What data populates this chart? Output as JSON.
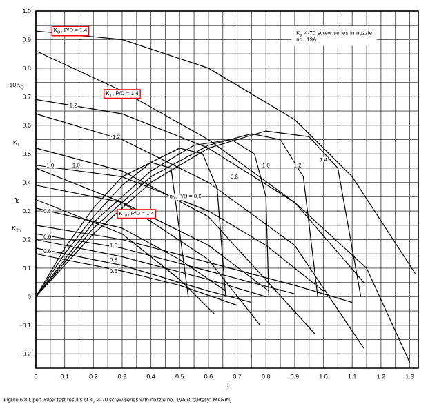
{
  "chart_data": {
    "type": "line",
    "xlabel": "J",
    "ylabel": "10K$_{Q}$",
    "xlim": [
      0,
      1.33
    ],
    "ylim": [
      -0.25,
      1.0
    ],
    "xticks": [
      0,
      0.1,
      0.2,
      0.3,
      0.4,
      0.5,
      0.6,
      0.7,
      0.8,
      0.9,
      {
        "value": 1.0,
        "label": "1.0"
      },
      1.1,
      1.2,
      1.3
    ],
    "yticks": [
      {
        "value": -0.2,
        "label": "−0.2"
      },
      {
        "value": -0.1,
        "label": "−0.1"
      },
      0,
      0.1,
      0.2,
      0.3,
      0.4,
      0.5,
      0.6,
      0.7,
      0.8,
      0.9,
      {
        "value": 1.0,
        "label": "1.0"
      }
    ],
    "grid": true,
    "series": [
      {
        "color": "#000000",
        "x": [
          0,
          0.3,
          0.6,
          0.9,
          1.1,
          1.32
        ],
        "values": [
          0.93,
          0.9,
          0.8,
          0.62,
          0.42,
          0.08
        ]
      },
      {
        "color": "#000000",
        "x": [
          0,
          0.3,
          0.6,
          0.9,
          1.14
        ],
        "values": [
          0.69,
          0.64,
          0.52,
          0.33,
          0.05
        ]
      },
      {
        "color": "#000000",
        "x": [
          0,
          0.3,
          0.6,
          0.8,
          1.0
        ],
        "values": [
          0.46,
          0.42,
          0.3,
          0.18,
          0.02
        ]
      },
      {
        "color": "#000000",
        "x": [
          0,
          0.3,
          0.6,
          0.81
        ],
        "values": [
          0.39,
          0.33,
          0.18,
          0.02
        ]
      },
      {
        "color": "#000000",
        "x": [
          0,
          0.3,
          0.5,
          0.66
        ],
        "values": [
          0.31,
          0.24,
          0.13,
          0.02
        ]
      },
      {
        "color": "#000000",
        "x": [
          0,
          0.3,
          0.6,
          0.9,
          1.15,
          1.3
        ],
        "values": [
          0.86,
          0.72,
          0.55,
          0.33,
          0.1,
          -0.23
        ]
      },
      {
        "color": "#000000",
        "x": [
          0,
          0.3,
          0.6,
          0.9,
          1.14
        ],
        "values": [
          0.64,
          0.55,
          0.4,
          0.18,
          -0.18
        ]
      },
      {
        "color": "#000000",
        "x": [
          0,
          0.3,
          0.6,
          0.97
        ],
        "values": [
          0.52,
          0.44,
          0.28,
          -0.13
        ]
      },
      {
        "color": "#000000",
        "x": [
          0,
          0.3,
          0.6,
          0.78
        ],
        "values": [
          0.45,
          0.33,
          0.13,
          -0.1
        ]
      },
      {
        "color": "#000000",
        "x": [
          0,
          0.3,
          0.5,
          0.62
        ],
        "values": [
          0.34,
          0.22,
          0.06,
          -0.06
        ]
      },
      {
        "color": "#000000",
        "x": [
          0,
          0.3,
          0.6,
          0.9,
          1.1
        ],
        "values": [
          0.25,
          0.2,
          0.12,
          0.04,
          -0.02
        ]
      },
      {
        "color": "#000000",
        "x": [
          0,
          0.3,
          0.6,
          0.9
        ],
        "values": [
          0.22,
          0.17,
          0.09,
          0.01
        ]
      },
      {
        "color": "#000000",
        "x": [
          0,
          0.3,
          0.6,
          0.8
        ],
        "values": [
          0.2,
          0.14,
          0.06,
          0.0
        ]
      },
      {
        "color": "#000000",
        "x": [
          0,
          0.3,
          0.6,
          0.75
        ],
        "values": [
          0.17,
          0.11,
          0.02,
          -0.02
        ]
      },
      {
        "color": "#000000",
        "x": [
          0,
          0.3,
          0.5,
          0.7
        ],
        "values": [
          0.15,
          0.09,
          0.04,
          -0.03
        ]
      },
      {
        "color": "#000000",
        "x": [
          0,
          0.1,
          0.2,
          0.3,
          0.4,
          0.47,
          0.53
        ],
        "values": [
          0,
          0.17,
          0.31,
          0.42,
          0.47,
          0.45,
          0
        ]
      },
      {
        "color": "#000000",
        "x": [
          0,
          0.1,
          0.2,
          0.3,
          0.4,
          0.5,
          0.58,
          0.63,
          0.66
        ],
        "values": [
          0,
          0.15,
          0.28,
          0.39,
          0.47,
          0.52,
          0.5,
          0.38,
          0
        ]
      },
      {
        "color": "#000000",
        "x": [
          0,
          0.2,
          0.4,
          0.55,
          0.68,
          0.76,
          0.8,
          0.81
        ],
        "values": [
          0,
          0.26,
          0.44,
          0.53,
          0.55,
          0.5,
          0.35,
          0
        ]
      },
      {
        "color": "#000000",
        "x": [
          0,
          0.2,
          0.4,
          0.6,
          0.75,
          0.85,
          0.93,
          0.98
        ],
        "values": [
          0,
          0.24,
          0.42,
          0.53,
          0.57,
          0.55,
          0.42,
          0
        ]
      },
      {
        "color": "#000000",
        "x": [
          0,
          0.2,
          0.4,
          0.6,
          0.8,
          0.95,
          1.05,
          1.13
        ],
        "values": [
          0,
          0.22,
          0.4,
          0.52,
          0.58,
          0.56,
          0.45,
          0
        ]
      }
    ],
    "annotations": [
      {
        "text": "K$_{Q}$, P/D = 1.4",
        "x": 0.12,
        "y": 0.93
      },
      {
        "text": "K$_{T}$, P/D = 1.4",
        "x": 0.3,
        "y": 0.71
      },
      {
        "text": "K$_{Tn}$, P/D = 1.4",
        "x": 0.35,
        "y": 0.29
      },
      {
        "text": "η$_{0}$, P/D = 0.6",
        "x": 0.52,
        "y": 0.35
      },
      {
        "text": "1.2",
        "x": 0.13,
        "y": 0.67
      },
      {
        "text": "1.2",
        "x": 0.28,
        "y": 0.56
      },
      {
        "text": "1.0",
        "x": 0.05,
        "y": 0.46
      },
      {
        "text": "1.0",
        "x": 0.14,
        "y": 0.46
      },
      {
        "text": "0.8",
        "x": 0.04,
        "y": 0.3
      },
      {
        "text": "0.6",
        "x": 0.04,
        "y": 0.21
      },
      {
        "text": "0.6",
        "x": 0.04,
        "y": 0.16
      },
      {
        "text": "1.0",
        "x": 0.27,
        "y": 0.18
      },
      {
        "text": "0.8",
        "x": 0.27,
        "y": 0.13
      },
      {
        "text": "0.6",
        "x": 0.27,
        "y": 0.09
      },
      {
        "text": "0.8",
        "x": 0.69,
        "y": 0.42
      },
      {
        "text": "1.0",
        "x": 0.8,
        "y": 0.46
      },
      {
        "text": "1.2",
        "x": 0.91,
        "y": 0.46
      },
      {
        "text": "1.4",
        "x": 1.0,
        "y": 0.48
      },
      "K$_{a}$ 4-70 screw series in nozzle no. 19A",
      "Figure 6.8  Open water test results of K$_{a}$ 4-70 screw series with nozzle no. 19A (Courtesy: MARIN)",
      "K$_{T}$",
      "η$_{0}$",
      "K$_{Tn}$"
    ]
  }
}
